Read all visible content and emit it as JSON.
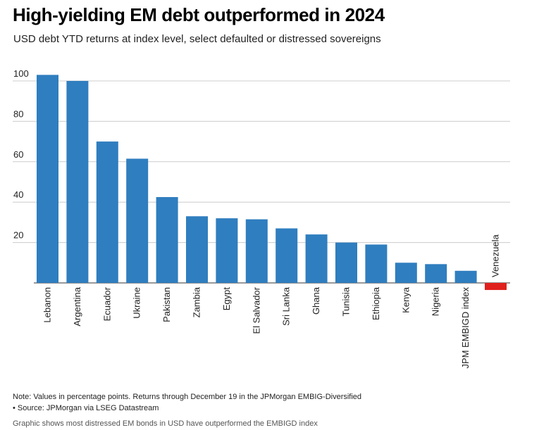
{
  "title": "High-yielding EM debt outperformed in 2024",
  "subtitle": "USD debt YTD returns at index level, select defaulted or distressed sovereigns",
  "note": "Note: Values in percentage points. Returns through December 19 in the JPMorgan EMBIG-Diversified",
  "source": "• Source: JPMorgan via LSEG Datastream",
  "caption": "Graphic shows most distressed EM bonds in USD have outperformed the EMBIGD index",
  "colors": {
    "positive": "#2f7ebf",
    "negative": "#e0201c",
    "grid": "#cccccc",
    "axis": "#333333"
  },
  "chart_data": {
    "type": "bar",
    "categories": [
      "Lebanon",
      "Argentina",
      "Ecuador",
      "Ukraine",
      "Pakistan",
      "Zambia",
      "Egypt",
      "El Salvador",
      "Sri Lanka",
      "Ghana",
      "Tunisia",
      "Ethiopia",
      "Kenya",
      "Nigeria",
      "JPM EMBIGD index",
      "Venezuela"
    ],
    "values": [
      103,
      100,
      70,
      61.5,
      42.5,
      33,
      32,
      31.5,
      27,
      24,
      20,
      19,
      10,
      9.3,
      6,
      -3.5
    ],
    "yticks": [
      20,
      40,
      60,
      80,
      100
    ],
    "ylim": [
      -5,
      108
    ],
    "grid": true,
    "legend": "none"
  }
}
